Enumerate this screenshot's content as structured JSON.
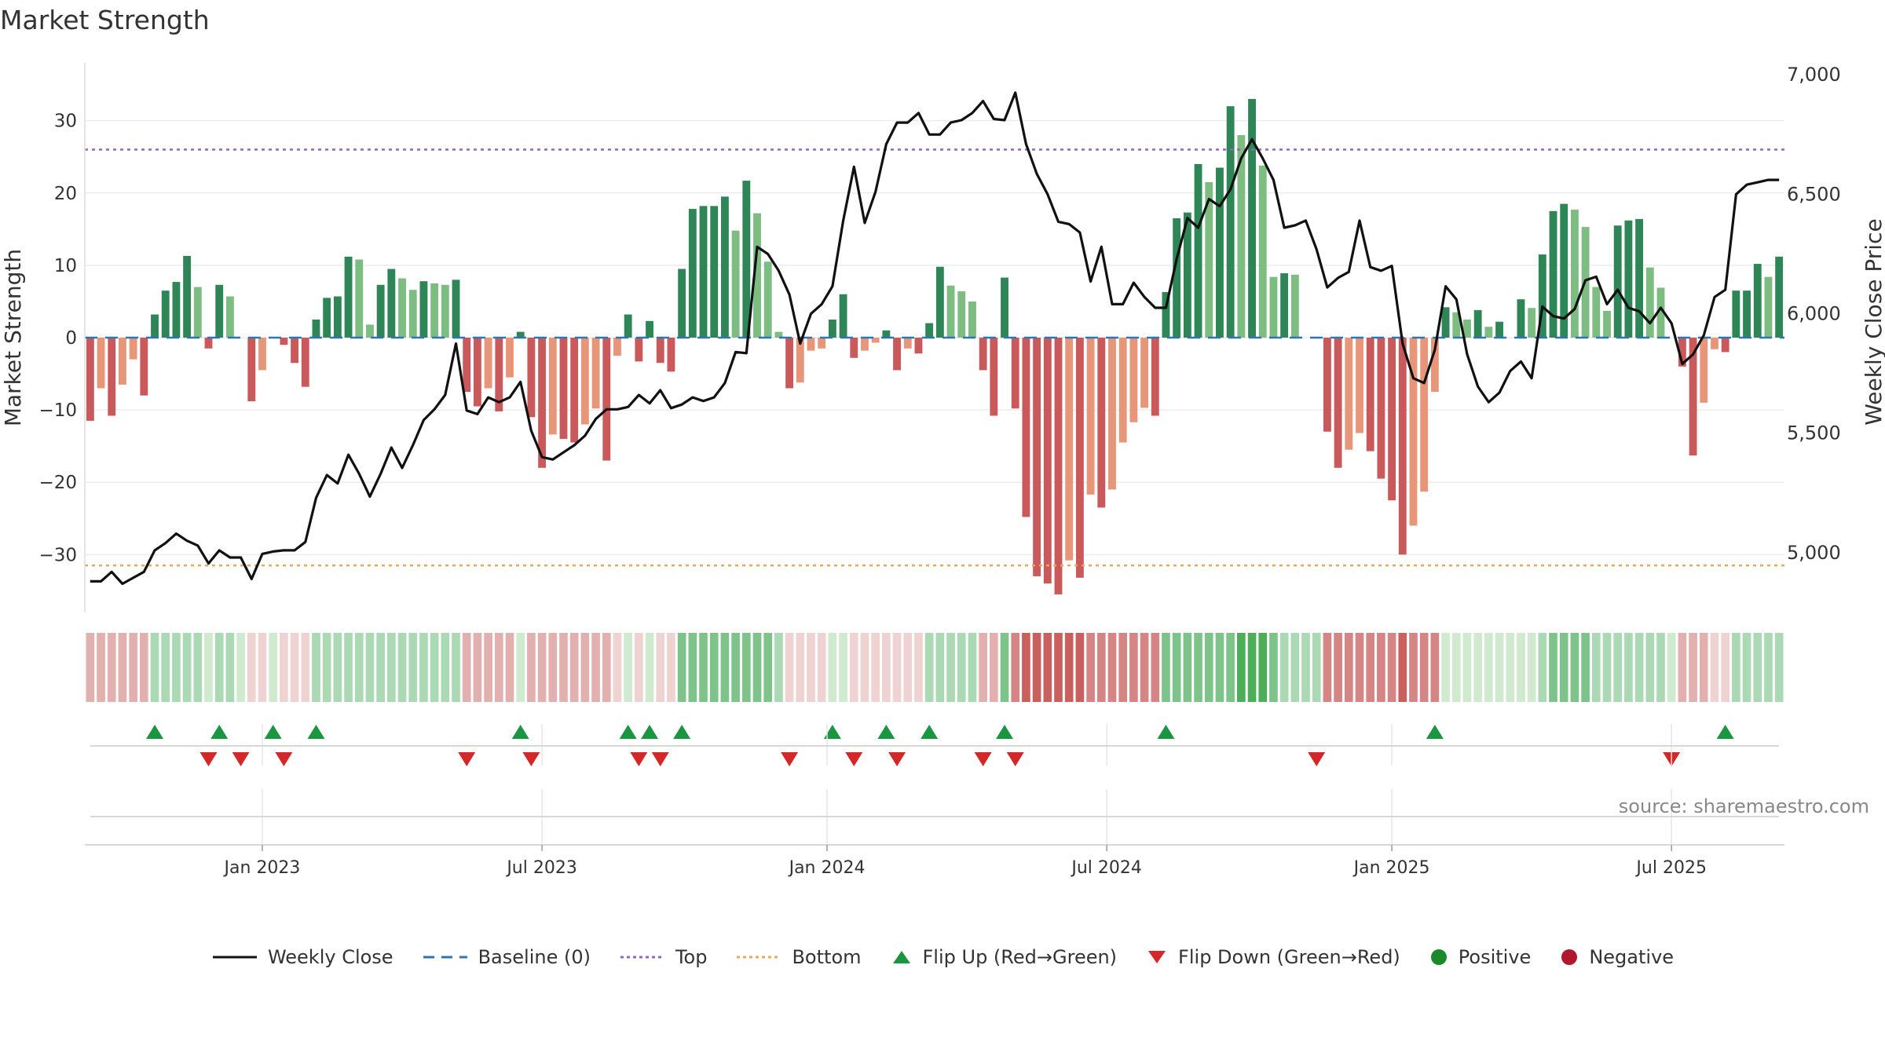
{
  "title": "Market Strength",
  "source": "source: sharemaestro.com",
  "colors": {
    "pos_dark": "#2e8555",
    "pos_light": "#7dbd82",
    "neg_dark": "#c9595b",
    "neg_light": "#e8967a",
    "line": "#111111",
    "baseline": "#2f75b5",
    "top": "#9467bd",
    "bottom": "#e8a860",
    "flip_up": "#1a9641",
    "flip_down": "#d62728",
    "positive": "#1a8a2a",
    "negative": "#b2182b"
  },
  "chart_data": {
    "type": "bar",
    "title": "Market Strength",
    "ylabel": "Market Strength",
    "y2label": "Weekly Close Price",
    "ylim": [
      -38,
      38
    ],
    "y2lim": [
      4750,
      7050
    ],
    "yticks": [
      30,
      20,
      10,
      0,
      -10,
      -20,
      -30
    ],
    "ytick_labels": [
      "30",
      "20",
      "10",
      "0",
      "−10",
      "−20",
      "−30"
    ],
    "y2ticks": [
      7000,
      6500,
      6000,
      5500,
      5000
    ],
    "y2tick_labels": [
      "7,000",
      "6,500",
      "6,000",
      "5,500",
      "5,000"
    ],
    "x_ticks": [
      {
        "label": "Jan 2023",
        "week": 16
      },
      {
        "label": "Jul 2023",
        "week": 42
      },
      {
        "label": "Jan 2024",
        "week": 68.5
      },
      {
        "label": "Jul 2024",
        "week": 94.5
      },
      {
        "label": "Jan 2025",
        "week": 121
      },
      {
        "label": "Jul 2025",
        "week": 147
      }
    ],
    "top_level": 26,
    "bottom_level": -31.5,
    "strength": [
      -11.5,
      -7,
      -10.8,
      -6.5,
      -3,
      -8,
      3.2,
      6.5,
      7.7,
      11.3,
      7,
      -1.5,
      7.3,
      5.7,
      0,
      -8.8,
      -4.5,
      0,
      -1,
      -3.5,
      -6.8,
      2.5,
      5.5,
      5.7,
      11.2,
      10.8,
      1.8,
      7.3,
      9.5,
      8.2,
      6.6,
      7.8,
      7.5,
      7.3,
      8,
      -7.5,
      -9.5,
      -7,
      -10.2,
      -5.5,
      0.8,
      -11,
      -18,
      -13.4,
      -14,
      -14.5,
      -12,
      -9.8,
      -17,
      -2.5,
      3.2,
      -3.3,
      2.3,
      -3.5,
      -4.7,
      9.5,
      17.8,
      18.2,
      18.2,
      19.5,
      14.8,
      21.7,
      17.2,
      10.5,
      0.8,
      -7,
      -6.2,
      -1.8,
      -1.5,
      2.5,
      6,
      -2.8,
      -1.8,
      -0.7,
      1,
      -4.5,
      -1.5,
      -2.2,
      2,
      9.8,
      7.2,
      6.4,
      5,
      -4.5,
      -10.8,
      8.3,
      -9.8,
      -24.8,
      -33,
      -34,
      -35.5,
      -30.8,
      -33.2,
      -21.7,
      -23.5,
      -21,
      -14.5,
      -11.7,
      -9.7,
      -10.8,
      6.3,
      16.5,
      17.3,
      24,
      21.5,
      23.5,
      32,
      28,
      33,
      23.8,
      8.4,
      8.9,
      8.7,
      0,
      0,
      -13,
      -18,
      -15.5,
      -13.2,
      -15.7,
      -19.5,
      -22.5,
      -30,
      -26,
      -21.3,
      -7.5,
      4.2,
      3.5,
      2.5,
      3.8,
      1.5,
      2.2,
      0,
      5.3,
      4.1,
      11.5,
      17.5,
      18.5,
      17.7,
      15.3,
      7,
      3.7,
      15.5,
      16.2,
      16.4,
      9.7,
      6.9,
      0,
      -4,
      -16.3,
      -9,
      -1.6,
      -2,
      6.5,
      6.5,
      10.2,
      8.4,
      11.2
    ],
    "weekly_close": [
      4880,
      4880,
      4920,
      4870,
      4895,
      4920,
      5010,
      5040,
      5080,
      5050,
      5030,
      4955,
      5010,
      4980,
      4980,
      4890,
      4995,
      5005,
      5010,
      5010,
      5045,
      5230,
      5325,
      5290,
      5410,
      5330,
      5235,
      5330,
      5440,
      5355,
      5450,
      5555,
      5600,
      5660,
      5875,
      5595,
      5580,
      5650,
      5630,
      5650,
      5715,
      5510,
      5400,
      5390,
      5420,
      5450,
      5490,
      5560,
      5600,
      5600,
      5610,
      5660,
      5625,
      5680,
      5605,
      5620,
      5650,
      5635,
      5650,
      5710,
      5840,
      5835,
      6280,
      6250,
      6180,
      6080,
      5875,
      6000,
      6040,
      6115,
      6390,
      6615,
      6380,
      6510,
      6710,
      6800,
      6800,
      6840,
      6750,
      6750,
      6800,
      6810,
      6840,
      6890,
      6815,
      6810,
      6925,
      6710,
      6585,
      6500,
      6385,
      6375,
      6340,
      6135,
      6280,
      6040,
      6040,
      6130,
      6070,
      6025,
      6025,
      6230,
      6400,
      6360,
      6480,
      6450,
      6520,
      6650,
      6730,
      6650,
      6560,
      6360,
      6370,
      6390,
      6270,
      6110,
      6150,
      6175,
      6390,
      6195,
      6180,
      6200,
      5875,
      5730,
      5710,
      5850,
      6115,
      6060,
      5830,
      5695,
      5630,
      5670,
      5760,
      5800,
      5730,
      6030,
      5990,
      5980,
      6020,
      6140,
      6155,
      6040,
      6100,
      6025,
      6010,
      5960,
      6025,
      5960,
      5790,
      5830,
      5910,
      6070,
      6100,
      6500,
      6540,
      6550,
      6560,
      6560
    ],
    "strip": [
      -2,
      -2,
      -2,
      -2,
      -2,
      -2,
      2,
      2,
      2,
      2,
      2,
      1,
      2,
      2,
      1,
      -1,
      -1,
      1,
      -1,
      -1,
      -1,
      2,
      2,
      2,
      2,
      2,
      2,
      2,
      2,
      2,
      2,
      2,
      2,
      2,
      2,
      -2,
      -2,
      -2,
      -2,
      -2,
      1,
      -2,
      -2,
      -2,
      -2,
      -2,
      -2,
      -2,
      -2,
      -1,
      1,
      -1,
      1,
      -1,
      -1,
      3,
      3,
      3,
      3,
      3,
      3,
      3,
      3,
      3,
      2,
      -1,
      -1,
      -1,
      -1,
      1,
      1,
      -1,
      -1,
      -1,
      -1,
      -1,
      -1,
      -1,
      2,
      2,
      2,
      2,
      2,
      -2,
      -2,
      3,
      -3,
      -4,
      -4,
      -4,
      -4,
      -4,
      -4,
      -3,
      -3,
      -3,
      -3,
      -3,
      -3,
      -3,
      3,
      3,
      3,
      3,
      3,
      3,
      3,
      4,
      4,
      4,
      3,
      2,
      2,
      2,
      2,
      -3,
      -3,
      -3,
      -3,
      -3,
      -3,
      -3,
      -4,
      -3,
      -3,
      -3,
      1,
      1,
      1,
      1,
      1,
      1,
      1,
      1,
      1,
      2,
      3,
      3,
      3,
      3,
      2,
      2,
      2,
      2,
      2,
      2,
      2,
      1,
      -2,
      -2,
      -2,
      -1,
      -1,
      2,
      2,
      2,
      2,
      2
    ],
    "flip_up_weeks": [
      6,
      12,
      17,
      21,
      40,
      50,
      52,
      55,
      69,
      74,
      78,
      85,
      100,
      125,
      152
    ],
    "flip_down_weeks": [
      11,
      14,
      18,
      35,
      41,
      51,
      53,
      65,
      71,
      75,
      83,
      86,
      114,
      147
    ]
  },
  "legend": [
    {
      "label": "Weekly Close",
      "symbol": "line"
    },
    {
      "label": "Baseline (0)",
      "symbol": "dashed"
    },
    {
      "label": "Top",
      "symbol": "dotted-top"
    },
    {
      "label": "Bottom",
      "symbol": "dotted-bottom"
    },
    {
      "label": "Flip Up (Red→Green)",
      "symbol": "triangle-up"
    },
    {
      "label": "Flip Down (Green→Red)",
      "symbol": "triangle-down"
    },
    {
      "label": "Positive",
      "symbol": "dot-positive"
    },
    {
      "label": "Negative",
      "symbol": "dot-negative"
    }
  ]
}
